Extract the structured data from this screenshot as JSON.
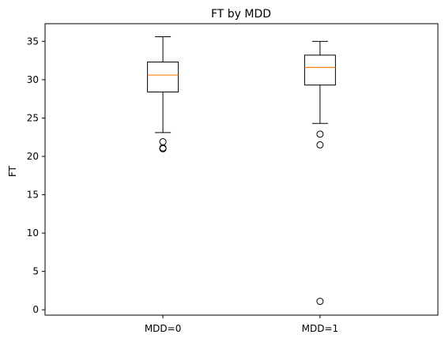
{
  "chart_data": {
    "type": "box",
    "title": "FT by MDD",
    "xlabel": "",
    "ylabel": "FT",
    "ylim": [
      -0.7,
      37.3
    ],
    "yticks": [
      0,
      5,
      10,
      15,
      20,
      25,
      30,
      35
    ],
    "categories": [
      "MDD=0",
      "MDD=1"
    ],
    "boxes": [
      {
        "name": "MDD=0",
        "whisker_low": 23.1,
        "q1": 28.4,
        "median": 30.6,
        "q3": 32.3,
        "whisker_high": 35.6,
        "outliers": [
          21.9,
          21.1,
          21.0
        ]
      },
      {
        "name": "MDD=1",
        "whisker_low": 24.3,
        "q1": 29.3,
        "median": 31.6,
        "q3": 33.2,
        "whisker_high": 35.0,
        "outliers": [
          22.9,
          21.5,
          1.1
        ]
      }
    ],
    "grid": false,
    "colors": {
      "box": "#000000",
      "median": "#ff7f0e",
      "outlier": "#000000"
    }
  }
}
